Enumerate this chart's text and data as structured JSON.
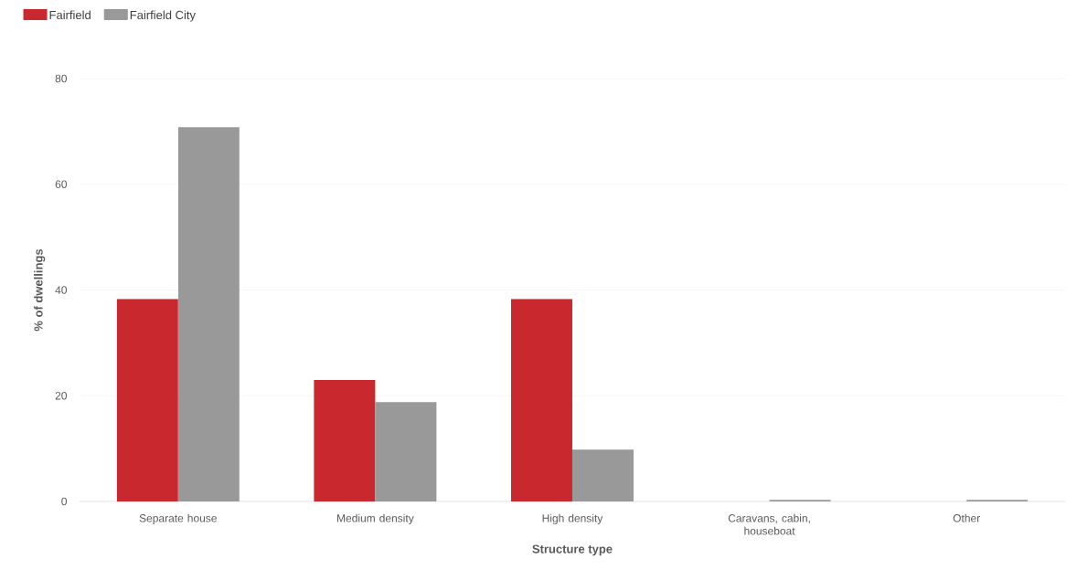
{
  "chart_data": {
    "type": "bar",
    "xlabel": "Structure type",
    "ylabel": "% of dwellings",
    "categories": [
      "Separate house",
      "Medium density",
      "High density",
      "Caravans, cabin, houseboat",
      "Other"
    ],
    "series": [
      {
        "name": "Fairfield",
        "color": "#c8282e",
        "values": [
          38.3,
          23.0,
          38.3,
          0,
          0
        ]
      },
      {
        "name": "Fairfield City",
        "color": "#999999",
        "values": [
          70.8,
          18.8,
          9.8,
          0.3,
          0.3
        ]
      }
    ],
    "ylim": [
      0,
      80
    ],
    "yticks": [
      0,
      20,
      40,
      60,
      80
    ],
    "grid": "y",
    "legend": "top left"
  }
}
